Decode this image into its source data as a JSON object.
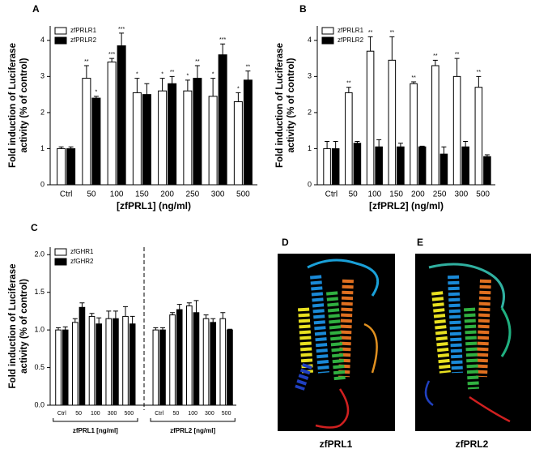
{
  "chart_data": [
    {
      "type": "bar",
      "panel": "A",
      "ylabel": [
        "Fold induction of Luciferase",
        "activity (% of control)"
      ],
      "xlabel": "[zfPRL1] (ng/ml)",
      "categories": [
        "Ctrl",
        "50",
        "100",
        "150",
        "200",
        "250",
        "300",
        "500"
      ],
      "series": [
        {
          "name": "zfPRLR1",
          "color": "#ffffff",
          "values": [
            1.0,
            2.95,
            3.4,
            2.55,
            2.6,
            2.6,
            2.45,
            2.3
          ],
          "errors": [
            0.05,
            0.35,
            0.1,
            0.4,
            0.35,
            0.3,
            0.5,
            0.25
          ],
          "stars": [
            null,
            "**",
            "***",
            "*",
            "*",
            "*",
            "*",
            "*"
          ]
        },
        {
          "name": "zfPRLR2",
          "color": "#000000",
          "values": [
            1.0,
            2.4,
            3.85,
            2.5,
            2.8,
            2.95,
            3.6,
            2.9
          ],
          "errors": [
            0.05,
            0.05,
            0.35,
            0.3,
            0.2,
            0.35,
            0.3,
            0.25
          ],
          "stars": [
            null,
            "*",
            "***",
            null,
            "**",
            "**",
            "***",
            "**"
          ]
        }
      ],
      "ylim": [
        0,
        4.4
      ],
      "yticks": [
        0,
        1,
        2,
        3,
        4
      ],
      "legend": "upper-left"
    },
    {
      "type": "bar",
      "panel": "B",
      "ylabel": [
        "Fold induction of Luciferase",
        "activity (% of control)"
      ],
      "xlabel": "[zfPRL2] (ng/ml)",
      "categories": [
        "Ctrl",
        "50",
        "100",
        "150",
        "200",
        "250",
        "300",
        "500"
      ],
      "series": [
        {
          "name": "zfPRLR1",
          "color": "#ffffff",
          "values": [
            1.0,
            2.55,
            3.7,
            3.45,
            2.8,
            3.3,
            3.0,
            2.7
          ],
          "errors": [
            0.2,
            0.15,
            0.4,
            0.65,
            0.05,
            0.15,
            0.5,
            0.3
          ],
          "stars": [
            null,
            "**",
            "**",
            "**",
            "**",
            "**",
            "**",
            "**"
          ]
        },
        {
          "name": "zfPRLR2",
          "color": "#000000",
          "values": [
            1.0,
            1.15,
            1.05,
            1.05,
            1.05,
            0.85,
            1.05,
            0.78
          ],
          "errors": [
            0.2,
            0.05,
            0.2,
            0.1,
            0.02,
            0.2,
            0.15,
            0.05
          ],
          "stars": [
            null,
            null,
            null,
            null,
            null,
            null,
            null,
            null
          ]
        }
      ],
      "ylim": [
        0,
        4.4
      ],
      "yticks": [
        0,
        1,
        2,
        3,
        4
      ],
      "legend": "upper-left"
    },
    {
      "type": "bar",
      "panel": "C",
      "ylabel": [
        "Fold induction of Luciferase",
        "activity (% of control)"
      ],
      "categories": [
        "Ctrl",
        "50",
        "100",
        "300",
        "500",
        "Ctrl",
        "50",
        "100",
        "300",
        "500"
      ],
      "group_labels": [
        "zfPRL1 [ng/ml]",
        "zfPRL2 [ng/ml]"
      ],
      "series": [
        {
          "name": "zfGHR1",
          "color": "#ffffff",
          "values": [
            1.0,
            1.1,
            1.18,
            1.15,
            1.18,
            1.0,
            1.2,
            1.32,
            1.15,
            1.15
          ],
          "errors": [
            0.03,
            0.05,
            0.04,
            0.1,
            0.13,
            0.03,
            0.03,
            0.04,
            0.05,
            0.08
          ]
        },
        {
          "name": "zfGHR2",
          "color": "#000000",
          "values": [
            1.0,
            1.3,
            1.08,
            1.15,
            1.08,
            1.0,
            1.27,
            1.23,
            1.1,
            1.0
          ],
          "errors": [
            0.04,
            0.06,
            0.08,
            0.1,
            0.1,
            0.03,
            0.07,
            0.16,
            0.05,
            0.01
          ]
        }
      ],
      "ylim": [
        0,
        2.1
      ],
      "yticks": [
        {
          "value": 0,
          "label": "0.0"
        },
        {
          "value": 0.5,
          "label": "0.5"
        },
        {
          "value": 1,
          "label": "1.0"
        },
        {
          "value": 1.5,
          "label": "1.5"
        },
        {
          "value": 2,
          "label": "2.0"
        }
      ],
      "legend": "upper-left"
    }
  ],
  "structures": [
    {
      "panel": "D",
      "label": "zfPRL1"
    },
    {
      "panel": "E",
      "label": "zfPRL2"
    }
  ]
}
